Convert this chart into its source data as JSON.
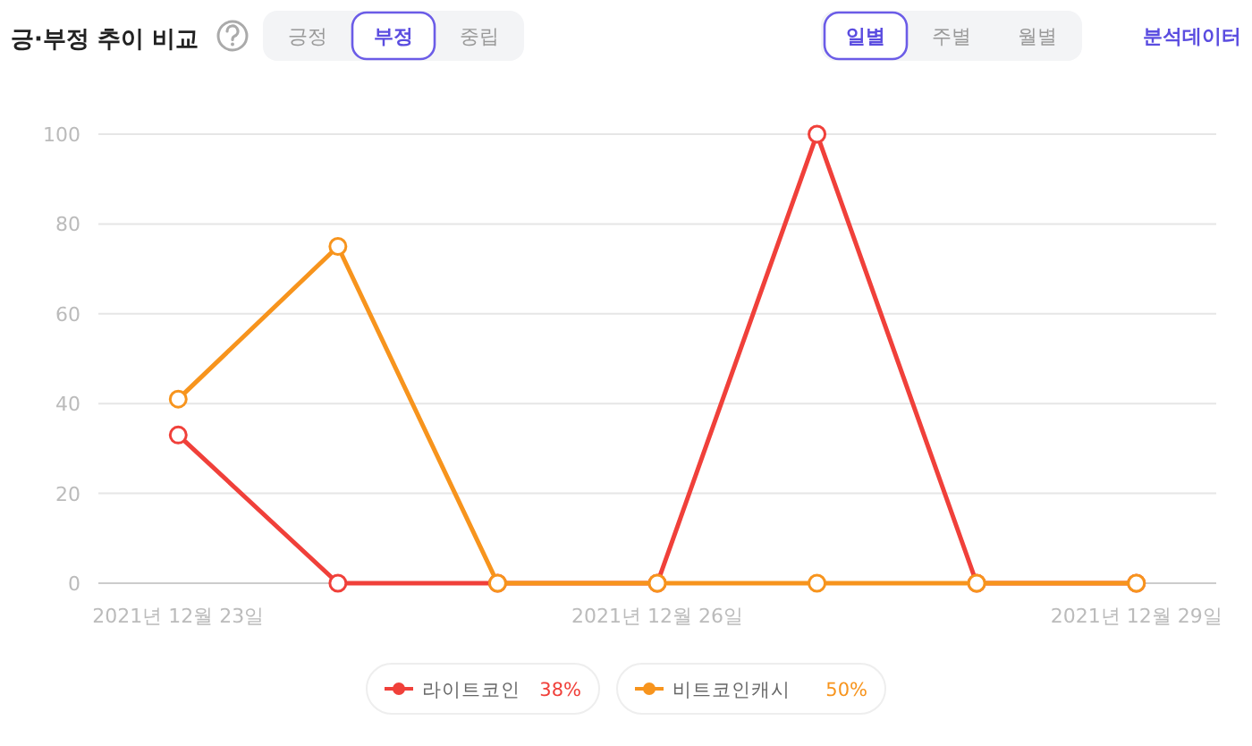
{
  "chart_data": {
    "type": "line",
    "title": "긍·부정 추이 비교",
    "categories": [
      "2021년 12월 23일",
      null,
      null,
      "2021년 12월 26일",
      null,
      null,
      "2021년 12월 29일"
    ],
    "series": [
      {
        "name": "라이트코인",
        "color": "#f0403a",
        "values": [
          33,
          0,
          0,
          0,
          100,
          0,
          0
        ]
      },
      {
        "name": "비트코인캐시",
        "color": "#f7941d",
        "values": [
          41,
          75,
          0,
          0,
          0,
          0,
          0
        ]
      }
    ],
    "ylim": [
      0,
      100
    ],
    "yticks": [
      0,
      20,
      40,
      60,
      80,
      100
    ],
    "grid": "y",
    "legend": "bottom",
    "marker": "circle",
    "annotations": [
      "긍정",
      "부정",
      "중립",
      "일별",
      "주별",
      "월별",
      "분석데이터",
      "38%",
      "50%"
    ]
  }
}
